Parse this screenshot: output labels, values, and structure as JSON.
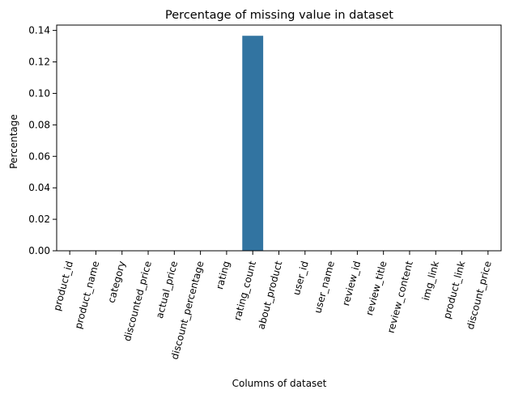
{
  "chart_data": {
    "type": "bar",
    "title": "Percentage of missing value in dataset",
    "xlabel": "Columns of dataset",
    "ylabel": "Percentage",
    "categories": [
      "product_id",
      "product_name",
      "category",
      "discounted_price",
      "actual_price",
      "discount_percentage",
      "rating",
      "rating_count",
      "about_product",
      "user_id",
      "user_name",
      "review_id",
      "review_title",
      "review_content",
      "img_link",
      "product_link",
      "discount_price"
    ],
    "values": [
      0,
      0,
      0,
      0,
      0,
      0,
      0,
      0.1366,
      0,
      0,
      0,
      0,
      0,
      0,
      0,
      0,
      0
    ],
    "ylim": [
      0,
      0.1434
    ],
    "yticks": [
      "0.00",
      "0.02",
      "0.04",
      "0.06",
      "0.08",
      "0.10",
      "0.12",
      "0.14"
    ],
    "bar_color": "#3274a1",
    "grid": false,
    "legend": "none"
  }
}
